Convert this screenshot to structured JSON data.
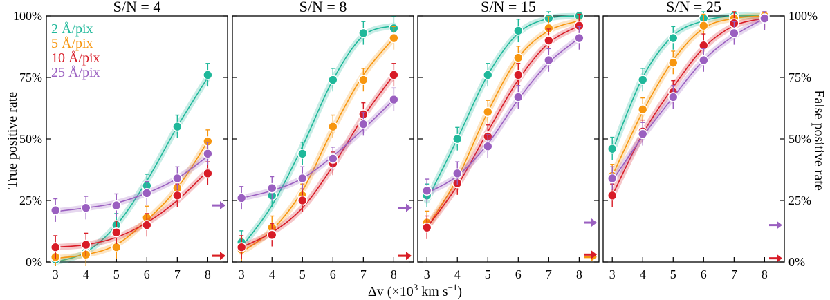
{
  "chart_data": {
    "type": "line",
    "xlabel": "Δv (×10",
    "xlabel_exp": "3",
    "xlabel_tail": " km s",
    "xlabel_tail_exp": "−1",
    "xlabel_close": ")",
    "ylabel_left": "True positive rate",
    "ylabel_right": "False positive rate",
    "xlim": [
      2.7,
      8.65
    ],
    "ylim": [
      0,
      100
    ],
    "xticks": [
      "3",
      "4",
      "5",
      "6",
      "7",
      "8"
    ],
    "yticks": [
      "0%",
      "25%",
      "50%",
      "75%",
      "100%"
    ],
    "yticks_right": [
      "0%",
      "25%",
      "50%",
      "75%",
      "100%"
    ],
    "x": [
      3,
      4,
      5,
      6,
      7,
      8
    ],
    "colors": {
      "2": "#1fb89a",
      "5": "#f7960f",
      "10": "#d81c27",
      "25": "#9a5fc0"
    },
    "legend": [
      {
        "key": "2",
        "label": "2 Å/pix"
      },
      {
        "key": "5",
        "label": "5 Å/pix"
      },
      {
        "key": "10",
        "label": "10 Å/pix"
      },
      {
        "key": "25",
        "label": "25 Å/pix"
      }
    ],
    "panels": [
      {
        "title": "S/N = 4",
        "series": [
          {
            "key": "2",
            "values": [
              1,
              4,
              15,
              31,
              55,
              76
            ],
            "fit": [
              0,
              4,
              15,
              33,
              55,
              75
            ],
            "err": 3
          },
          {
            "key": "5",
            "values": [
              2,
              3,
              6,
              18,
              30,
              49
            ],
            "fit": [
              1.5,
              3,
              7,
              17,
              30,
              49
            ],
            "err": 3
          },
          {
            "key": "10",
            "values": [
              6,
              7,
              12,
              15,
              27,
              36
            ],
            "fit": [
              6,
              7,
              10,
              16,
              25,
              37
            ],
            "err": 3
          },
          {
            "key": "25",
            "values": [
              21,
              22,
              23,
              28,
              34,
              44
            ],
            "fit": [
              20.5,
              22,
              24,
              28,
              34,
              43
            ],
            "err": 3
          }
        ],
        "fp": {
          "25": 23,
          "10": 2.5,
          "5": 2.5
        }
      },
      {
        "title": "S/N = 8",
        "series": [
          {
            "key": "2",
            "values": [
              8,
              27,
              44,
              74,
              93,
              95
            ],
            "fit": [
              6,
              23,
              47,
              74,
              92,
              96
            ],
            "err": 3
          },
          {
            "key": "5",
            "values": [
              5,
              14,
              27,
              55,
              74,
              91
            ],
            "fit": [
              4,
              13,
              29,
              54,
              76,
              91
            ],
            "err": 3
          },
          {
            "key": "10",
            "values": [
              6,
              11,
              25,
              40,
              60,
              76
            ],
            "fit": [
              6,
              12,
              22,
              39,
              59,
              76
            ],
            "err": 3
          },
          {
            "key": "25",
            "values": [
              26,
              30,
              34,
              42,
              56,
              66
            ],
            "fit": [
              26,
              29,
              34,
              43,
              54,
              66
            ],
            "err": 3
          }
        ],
        "fp": {
          "25": 22,
          "10": 2.5,
          "5": 2.5
        }
      },
      {
        "title": "S/N = 15",
        "series": [
          {
            "key": "2",
            "values": [
              27,
              50,
              76,
              94,
              99,
              100
            ],
            "fit": [
              25,
              50,
              76,
              93,
              99,
              100
            ],
            "err": 3
          },
          {
            "key": "5",
            "values": [
              16,
              32,
              61,
              83,
              95,
              96
            ],
            "fit": [
              14,
              34,
              61,
              83,
              94,
              98
            ],
            "err": 3
          },
          {
            "key": "10",
            "values": [
              14,
              32,
              51,
              76,
              90,
              96
            ],
            "fit": [
              14,
              31,
              53,
              74,
              89,
              96
            ],
            "err": 3
          },
          {
            "key": "25",
            "values": [
              29,
              36,
              47,
              67,
              82,
              91
            ],
            "fit": [
              28,
              35,
              48,
              66,
              81,
              91
            ],
            "err": 3
          }
        ],
        "fp": {
          "25": 16,
          "10": 3,
          "5": 2
        }
      },
      {
        "title": "S/N = 25",
        "series": [
          {
            "key": "2",
            "values": [
              46,
              74,
              91,
              99,
              100,
              100
            ],
            "fit": [
              45,
              75,
              92,
              98,
              100,
              100
            ],
            "err": 3
          },
          {
            "key": "5",
            "values": [
              35,
              62,
              81,
              96,
              99,
              100
            ],
            "fit": [
              35,
              61,
              82,
              95,
              99,
              100
            ],
            "err": 3
          },
          {
            "key": "10",
            "values": [
              27,
              53,
              69,
              88,
              97,
              99
            ],
            "fit": [
              27,
              52,
              71,
              87,
              96,
              99
            ],
            "err": 3
          },
          {
            "key": "25",
            "values": [
              34,
              52,
              67,
              82,
              93,
              99
            ],
            "fit": [
              33,
              51,
              67,
              82,
              92,
              99
            ],
            "err": 3
          }
        ],
        "fp": {
          "25": 15,
          "10": 1.5
        }
      }
    ]
  }
}
